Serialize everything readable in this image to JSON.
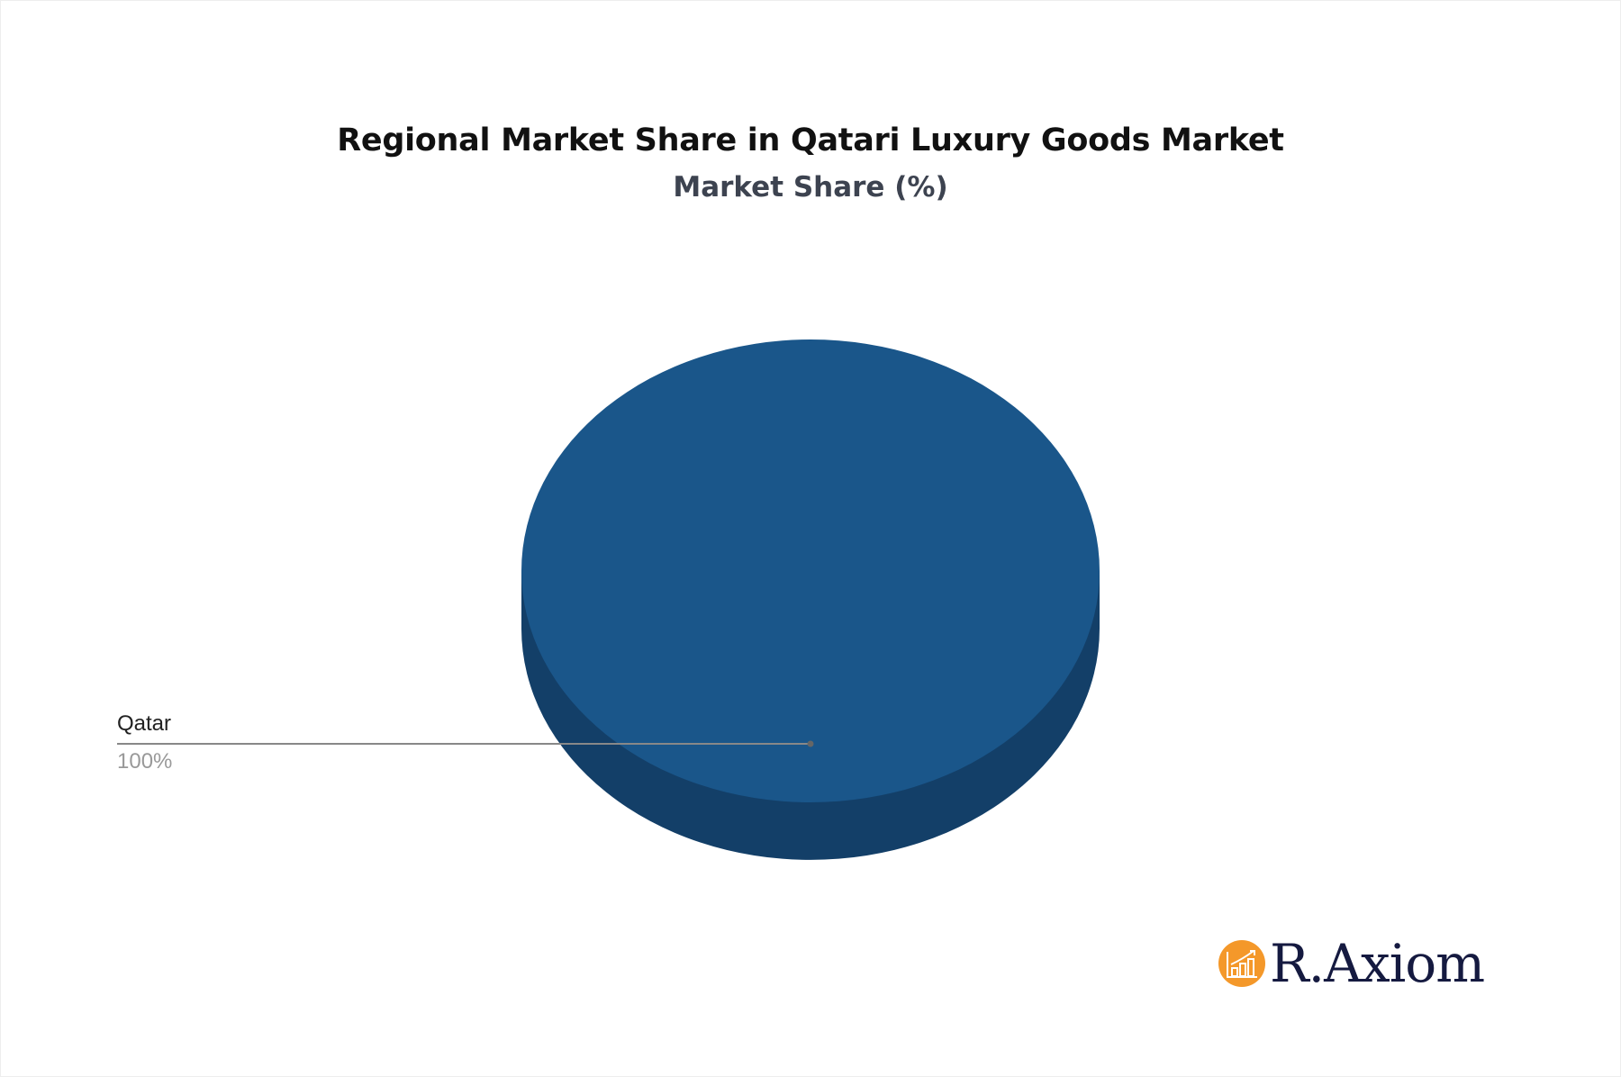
{
  "chart_data": {
    "type": "pie",
    "title": "Regional Market Share in Qatari Luxury Goods Market",
    "subtitle": "Market Share (%)",
    "slices": [
      {
        "label": "Qatar",
        "value": 100,
        "value_label": "100%",
        "color": "#1a568a",
        "side_color": "#133f68"
      }
    ],
    "style": "3d"
  },
  "brand": {
    "logo_text": "R.Axiom",
    "logo_color": "#f4982a"
  }
}
